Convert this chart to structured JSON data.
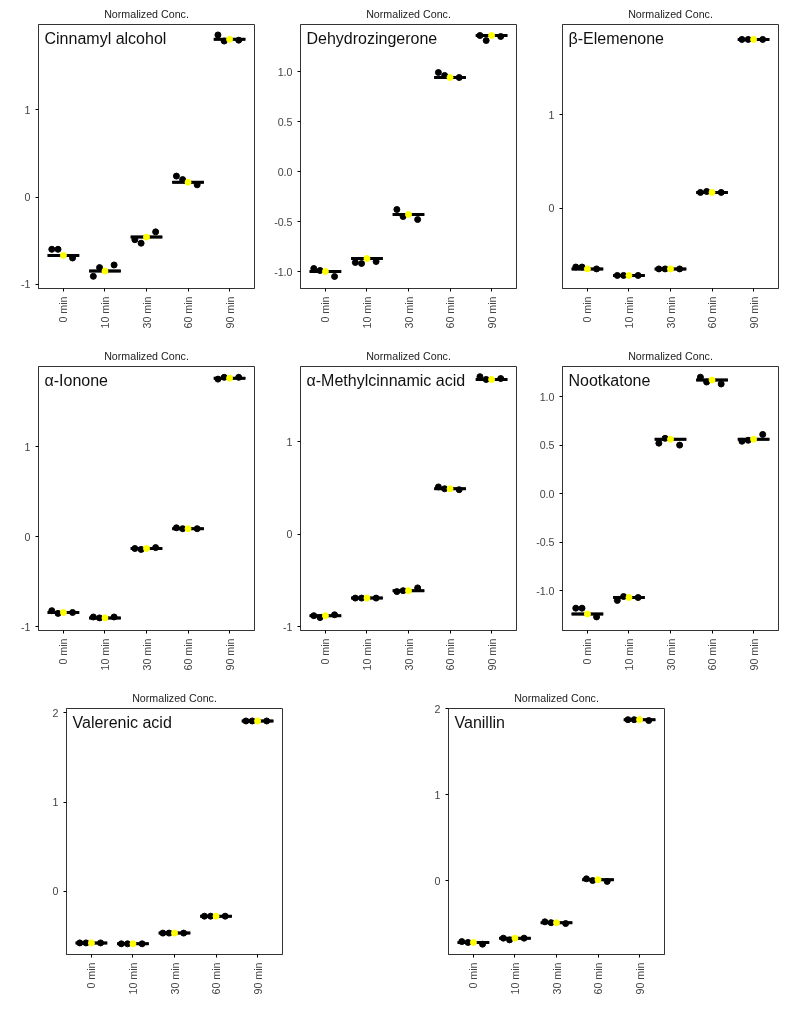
{
  "chart_data": [
    {
      "type": "box",
      "title": "Normalized Conc.",
      "annotations": [
        "Cinnamyl alcohol"
      ],
      "categories": [
        "0 min",
        "10 min",
        "30 min",
        "60 min",
        "90 min"
      ],
      "ylim": [
        -1.05,
        1.98
      ],
      "yticks": [
        -1,
        0,
        1
      ],
      "boxes": [
        {
          "low": -0.67,
          "q1": -0.67,
          "median": -0.67,
          "q3": -0.67,
          "high": -0.67
        },
        {
          "low": -0.85,
          "q1": -0.85,
          "median": -0.85,
          "q3": -0.85,
          "high": -0.85
        },
        {
          "low": -0.46,
          "q1": -0.46,
          "median": -0.46,
          "q3": -0.46,
          "high": -0.46
        },
        {
          "low": 0.17,
          "q1": 0.17,
          "median": 0.17,
          "q3": 0.17,
          "high": 0.17
        },
        {
          "low": 1.81,
          "q1": 1.81,
          "median": 1.81,
          "q3": 1.81,
          "high": 1.81
        }
      ],
      "series": [
        {
          "type": "scatter",
          "color": "#000000",
          "x": [
            "0 min",
            "0 min",
            "0 min",
            "10 min",
            "10 min",
            "10 min",
            "30 min",
            "30 min",
            "30 min",
            "60 min",
            "60 min",
            "60 min",
            "90 min",
            "90 min",
            "90 min"
          ],
          "values": [
            -0.6,
            -0.6,
            -0.7,
            -0.91,
            -0.81,
            -0.78,
            -0.49,
            -0.53,
            -0.4,
            0.24,
            0.2,
            0.14,
            1.86,
            1.79,
            1.8
          ]
        },
        {
          "type": "scatter",
          "color": "#ffff00",
          "x": [
            "0 min",
            "10 min",
            "30 min",
            "60 min",
            "90 min"
          ],
          "values": [
            -0.67,
            -0.85,
            -0.46,
            0.17,
            1.81
          ]
        }
      ]
    },
    {
      "type": "box",
      "title": "Normalized Conc.",
      "annotations": [
        "Dehydrozingerone"
      ],
      "categories": [
        "0 min",
        "10 min",
        "30 min",
        "60 min",
        "90 min"
      ],
      "ylim": [
        -1.17,
        1.47
      ],
      "yticks": [
        {
          "value": -1,
          "label": "-1.0"
        },
        -0.5,
        {
          "value": 0,
          "label": "0.0"
        },
        0.5,
        {
          "value": 1,
          "label": "1.0"
        }
      ],
      "boxes": [
        {
          "low": -1.0,
          "q1": -1.0,
          "median": -1.0,
          "q3": -1.0,
          "high": -1.0
        },
        {
          "low": -0.87,
          "q1": -0.87,
          "median": -0.87,
          "q3": -0.87,
          "high": -0.87
        },
        {
          "low": -0.43,
          "q1": -0.43,
          "median": -0.43,
          "q3": -0.43,
          "high": -0.43
        },
        {
          "low": 0.94,
          "q1": 0.94,
          "median": 0.94,
          "q3": 0.94,
          "high": 0.94
        },
        {
          "low": 1.36,
          "q1": 1.36,
          "median": 1.36,
          "q3": 1.36,
          "high": 1.36
        }
      ],
      "series": [
        {
          "type": "scatter",
          "color": "#000000",
          "x": [
            "0 min",
            "0 min",
            "0 min",
            "10 min",
            "10 min",
            "10 min",
            "30 min",
            "30 min",
            "30 min",
            "60 min",
            "60 min",
            "60 min",
            "90 min",
            "90 min",
            "90 min"
          ],
          "values": [
            -0.97,
            -0.99,
            -1.05,
            -0.91,
            -0.92,
            -0.9,
            -0.38,
            -0.45,
            -0.48,
            0.99,
            0.96,
            0.94,
            1.36,
            1.31,
            1.35
          ]
        },
        {
          "type": "scatter",
          "color": "#ffff00",
          "x": [
            "0 min",
            "10 min",
            "30 min",
            "60 min",
            "90 min"
          ],
          "values": [
            -1.0,
            -0.87,
            -0.43,
            0.94,
            1.36
          ]
        }
      ]
    },
    {
      "type": "box",
      "title": "Normalized Conc.",
      "annotations": [
        "β-Elemenone"
      ],
      "categories": [
        "0 min",
        "10 min",
        "30 min",
        "60 min",
        "90 min"
      ],
      "ylim": [
        -0.86,
        1.97
      ],
      "yticks": [
        0,
        1
      ],
      "boxes": [
        {
          "low": -0.65,
          "q1": -0.65,
          "median": -0.65,
          "q3": -0.65,
          "high": -0.65
        },
        {
          "low": -0.72,
          "q1": -0.72,
          "median": -0.72,
          "q3": -0.72,
          "high": -0.72
        },
        {
          "low": -0.65,
          "q1": -0.65,
          "median": -0.65,
          "q3": -0.65,
          "high": -0.65
        },
        {
          "low": 0.17,
          "q1": 0.17,
          "median": 0.17,
          "q3": 0.17,
          "high": 0.17
        },
        {
          "low": 1.81,
          "q1": 1.81,
          "median": 1.81,
          "q3": 1.81,
          "high": 1.81
        }
      ],
      "series": [
        {
          "type": "scatter",
          "color": "#000000",
          "x": [
            "0 min",
            "0 min",
            "0 min",
            "10 min",
            "10 min",
            "10 min",
            "30 min",
            "30 min",
            "30 min",
            "60 min",
            "60 min",
            "60 min",
            "90 min",
            "90 min",
            "90 min"
          ],
          "values": [
            -0.63,
            -0.63,
            -0.65,
            -0.72,
            -0.72,
            -0.72,
            -0.65,
            -0.65,
            -0.65,
            0.17,
            0.18,
            0.17,
            1.81,
            1.81,
            1.81
          ]
        },
        {
          "type": "scatter",
          "color": "#ffff00",
          "x": [
            "0 min",
            "10 min",
            "30 min",
            "60 min",
            "90 min"
          ],
          "values": [
            -0.65,
            -0.72,
            -0.65,
            0.17,
            1.81
          ]
        }
      ]
    },
    {
      "type": "box",
      "title": "Normalized Conc.",
      "annotations": [
        "α-Ionone"
      ],
      "categories": [
        "0 min",
        "10 min",
        "30 min",
        "60 min",
        "90 min"
      ],
      "ylim": [
        -1.04,
        1.89
      ],
      "yticks": [
        -1,
        0,
        1
      ],
      "boxes": [
        {
          "low": -0.84,
          "q1": -0.84,
          "median": -0.84,
          "q3": -0.84,
          "high": -0.84
        },
        {
          "low": -0.9,
          "q1": -0.9,
          "median": -0.9,
          "q3": -0.9,
          "high": -0.9
        },
        {
          "low": -0.13,
          "q1": -0.13,
          "median": -0.13,
          "q3": -0.13,
          "high": -0.13
        },
        {
          "low": 0.09,
          "q1": 0.09,
          "median": 0.09,
          "q3": 0.09,
          "high": 0.09
        },
        {
          "low": 1.76,
          "q1": 1.76,
          "median": 1.76,
          "q3": 1.76,
          "high": 1.76
        }
      ],
      "series": [
        {
          "type": "scatter",
          "color": "#000000",
          "x": [
            "0 min",
            "0 min",
            "0 min",
            "10 min",
            "10 min",
            "10 min",
            "30 min",
            "30 min",
            "30 min",
            "60 min",
            "60 min",
            "60 min",
            "90 min",
            "90 min",
            "90 min"
          ],
          "values": [
            -0.82,
            -0.85,
            -0.84,
            -0.89,
            -0.9,
            -0.89,
            -0.13,
            -0.14,
            -0.12,
            0.1,
            0.09,
            0.09,
            1.75,
            1.77,
            1.77
          ]
        },
        {
          "type": "scatter",
          "color": "#ffff00",
          "x": [
            "0 min",
            "10 min",
            "30 min",
            "60 min",
            "90 min"
          ],
          "values": [
            -0.84,
            -0.9,
            -0.13,
            0.09,
            1.76
          ]
        }
      ]
    },
    {
      "type": "box",
      "title": "Normalized Conc.",
      "annotations": [
        "α-Methylcinnamic acid"
      ],
      "categories": [
        "0 min",
        "10 min",
        "30 min",
        "60 min",
        "90 min"
      ],
      "ylim": [
        -1.04,
        1.81
      ],
      "yticks": [
        -1,
        0,
        1
      ],
      "boxes": [
        {
          "low": -0.88,
          "q1": -0.88,
          "median": -0.88,
          "q3": -0.88,
          "high": -0.88
        },
        {
          "low": -0.69,
          "q1": -0.69,
          "median": -0.69,
          "q3": -0.69,
          "high": -0.69
        },
        {
          "low": -0.61,
          "q1": -0.61,
          "median": -0.61,
          "q3": -0.61,
          "high": -0.61
        },
        {
          "low": 0.49,
          "q1": 0.49,
          "median": 0.49,
          "q3": 0.49,
          "high": 0.49
        },
        {
          "low": 1.67,
          "q1": 1.67,
          "median": 1.67,
          "q3": 1.67,
          "high": 1.67
        }
      ],
      "series": [
        {
          "type": "scatter",
          "color": "#000000",
          "x": [
            "0 min",
            "0 min",
            "0 min",
            "10 min",
            "10 min",
            "10 min",
            "30 min",
            "30 min",
            "30 min",
            "60 min",
            "60 min",
            "60 min",
            "90 min",
            "90 min",
            "90 min"
          ],
          "values": [
            -0.88,
            -0.9,
            -0.87,
            -0.69,
            -0.69,
            -0.69,
            -0.62,
            -0.61,
            -0.58,
            0.51,
            0.49,
            0.48,
            1.7,
            1.67,
            1.68
          ]
        },
        {
          "type": "scatter",
          "color": "#ffff00",
          "x": [
            "0 min",
            "10 min",
            "30 min",
            "60 min",
            "90 min"
          ],
          "values": [
            -0.88,
            -0.69,
            -0.61,
            0.49,
            1.67
          ]
        }
      ]
    },
    {
      "type": "box",
      "title": "Normalized Conc.",
      "annotations": [
        "Nootkatone"
      ],
      "categories": [
        "0 min",
        "10 min",
        "30 min",
        "60 min",
        "90 min"
      ],
      "ylim": [
        -1.41,
        1.31
      ],
      "yticks": [
        {
          "value": -1,
          "label": "-1.0"
        },
        -0.5,
        {
          "value": 0,
          "label": "0.0"
        },
        0.5,
        {
          "value": 1,
          "label": "1.0"
        }
      ],
      "boxes": [
        {
          "low": -1.24,
          "q1": -1.24,
          "median": -1.24,
          "q3": -1.24,
          "high": -1.24
        },
        {
          "low": -1.07,
          "q1": -1.07,
          "median": -1.07,
          "q3": -1.07,
          "high": -1.07
        },
        {
          "low": 0.56,
          "q1": 0.56,
          "median": 0.56,
          "q3": 0.56,
          "high": 0.56
        },
        {
          "low": 1.17,
          "q1": 1.17,
          "median": 1.17,
          "q3": 1.17,
          "high": 1.17
        },
        {
          "low": 0.56,
          "q1": 0.56,
          "median": 0.56,
          "q3": 0.56,
          "high": 0.56
        }
      ],
      "series": [
        {
          "type": "scatter",
          "color": "#000000",
          "x": [
            "0 min",
            "0 min",
            "0 min",
            "10 min",
            "10 min",
            "10 min",
            "30 min",
            "30 min",
            "30 min",
            "60 min",
            "60 min",
            "60 min",
            "90 min",
            "90 min",
            "90 min"
          ],
          "values": [
            -1.18,
            -1.18,
            -1.27,
            -1.1,
            -1.06,
            -1.07,
            0.52,
            0.57,
            0.5,
            1.2,
            1.15,
            1.13,
            0.54,
            0.55,
            0.61
          ]
        },
        {
          "type": "scatter",
          "color": "#ffff00",
          "x": [
            "0 min",
            "10 min",
            "30 min",
            "60 min",
            "90 min"
          ],
          "values": [
            -1.24,
            -1.07,
            0.56,
            1.17,
            0.56
          ]
        }
      ]
    },
    {
      "type": "box",
      "title": "Normalized Conc.",
      "annotations": [
        "Valerenic acid"
      ],
      "categories": [
        "0 min",
        "10 min",
        "30 min",
        "60 min",
        "90 min"
      ],
      "ylim": [
        -0.71,
        2.05
      ],
      "yticks": [
        0,
        1,
        2
      ],
      "boxes": [
        {
          "low": -0.58,
          "q1": -0.58,
          "median": -0.58,
          "q3": -0.58,
          "high": -0.58
        },
        {
          "low": -0.59,
          "q1": -0.59,
          "median": -0.59,
          "q3": -0.59,
          "high": -0.59
        },
        {
          "low": -0.47,
          "q1": -0.47,
          "median": -0.47,
          "q3": -0.47,
          "high": -0.47
        },
        {
          "low": -0.28,
          "q1": -0.28,
          "median": -0.28,
          "q3": -0.28,
          "high": -0.28
        },
        {
          "low": 1.91,
          "q1": 1.91,
          "median": 1.91,
          "q3": 1.91,
          "high": 1.91
        }
      ],
      "series": [
        {
          "type": "scatter",
          "color": "#000000",
          "x": [
            "0 min",
            "0 min",
            "0 min",
            "10 min",
            "10 min",
            "10 min",
            "30 min",
            "30 min",
            "30 min",
            "60 min",
            "60 min",
            "60 min",
            "90 min",
            "90 min",
            "90 min"
          ],
          "values": [
            -0.58,
            -0.58,
            -0.58,
            -0.59,
            -0.59,
            -0.59,
            -0.47,
            -0.47,
            -0.47,
            -0.28,
            -0.28,
            -0.28,
            1.91,
            1.91,
            1.91
          ]
        },
        {
          "type": "scatter",
          "color": "#ffff00",
          "x": [
            "0 min",
            "10 min",
            "30 min",
            "60 min",
            "90 min"
          ],
          "values": [
            -0.58,
            -0.59,
            -0.47,
            -0.28,
            1.91
          ]
        }
      ]
    },
    {
      "type": "box",
      "title": "Normalized Conc.",
      "annotations": [
        "Vanillin"
      ],
      "categories": [
        "0 min",
        "10 min",
        "30 min",
        "60 min",
        "90 min"
      ],
      "ylim": [
        -0.86,
        2.0
      ],
      "yticks": [
        0,
        1,
        2
      ],
      "boxes": [
        {
          "low": -0.72,
          "q1": -0.72,
          "median": -0.72,
          "q3": -0.72,
          "high": -0.72
        },
        {
          "low": -0.67,
          "q1": -0.67,
          "median": -0.67,
          "q3": -0.67,
          "high": -0.67
        },
        {
          "low": -0.49,
          "q1": -0.49,
          "median": -0.49,
          "q3": -0.49,
          "high": -0.49
        },
        {
          "low": 0.01,
          "q1": 0.01,
          "median": 0.01,
          "q3": 0.01,
          "high": 0.01
        },
        {
          "low": 1.87,
          "q1": 1.87,
          "median": 1.87,
          "q3": 1.87,
          "high": 1.87
        }
      ],
      "series": [
        {
          "type": "scatter",
          "color": "#000000",
          "x": [
            "0 min",
            "0 min",
            "0 min",
            "10 min",
            "10 min",
            "10 min",
            "30 min",
            "30 min",
            "30 min",
            "60 min",
            "60 min",
            "60 min",
            "90 min",
            "90 min",
            "90 min"
          ],
          "values": [
            -0.71,
            -0.72,
            -0.74,
            -0.67,
            -0.69,
            -0.67,
            -0.48,
            -0.49,
            -0.5,
            0.02,
            0.0,
            -0.01,
            1.87,
            1.87,
            1.86
          ]
        },
        {
          "type": "scatter",
          "color": "#ffff00",
          "x": [
            "0 min",
            "10 min",
            "30 min",
            "60 min",
            "90 min"
          ],
          "values": [
            -0.72,
            -0.67,
            -0.49,
            0.01,
            1.87
          ]
        }
      ]
    }
  ]
}
